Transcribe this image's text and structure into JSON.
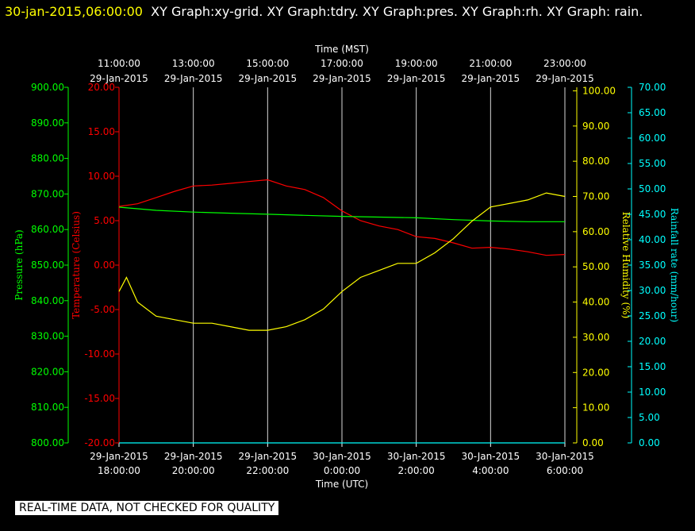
{
  "header": {
    "timestamp": "30-jan-2015,06:00:00",
    "title": "XY Graph:xy-grid.  XY Graph:tdry.  XY Graph:pres.  XY Graph:rh.  XY Graph: rain."
  },
  "footer": {
    "notice": "REAL-TIME DATA, NOT CHECKED FOR QUALITY"
  },
  "colors": {
    "background": "#000000",
    "grid": "#ffffff",
    "temperature": "#ff0000",
    "pressure": "#00ff00",
    "humidity": "#ffff00",
    "rain": "#00ffff"
  },
  "chart_data": {
    "type": "line",
    "x_top_title": "Time (MST)",
    "x_bottom_title": "Time (UTC)",
    "x_range_hours_utc": [
      0,
      12
    ],
    "x_ticks_top": [
      {
        "h": 0,
        "l1": "11:00:00",
        "l2": "29-Jan-2015"
      },
      {
        "h": 2,
        "l1": "13:00:00",
        "l2": "29-Jan-2015"
      },
      {
        "h": 4,
        "l1": "15:00:00",
        "l2": "29-Jan-2015"
      },
      {
        "h": 6,
        "l1": "17:00:00",
        "l2": "29-Jan-2015"
      },
      {
        "h": 8,
        "l1": "19:00:00",
        "l2": "29-Jan-2015"
      },
      {
        "h": 10,
        "l1": "21:00:00",
        "l2": "29-Jan-2015"
      },
      {
        "h": 12,
        "l1": "23:00:00",
        "l2": "29-Jan-2015"
      }
    ],
    "x_ticks_bottom": [
      {
        "h": 0,
        "l1": "29-Jan-2015",
        "l2": "18:00:00"
      },
      {
        "h": 2,
        "l1": "29-Jan-2015",
        "l2": "20:00:00"
      },
      {
        "h": 4,
        "l1": "29-Jan-2015",
        "l2": "22:00:00"
      },
      {
        "h": 6,
        "l1": "30-Jan-2015",
        "l2": "0:00:00"
      },
      {
        "h": 8,
        "l1": "30-Jan-2015",
        "l2": "2:00:00"
      },
      {
        "h": 10,
        "l1": "30-Jan-2015",
        "l2": "4:00:00"
      },
      {
        "h": 12,
        "l1": "30-Jan-2015",
        "l2": "6:00:00"
      }
    ],
    "axes": {
      "pressure": {
        "label": "Pressure (hPa)",
        "range": [
          800,
          900
        ],
        "ticks": [
          "800.00",
          "810.00",
          "820.00",
          "830.00",
          "840.00",
          "850.00",
          "860.00",
          "870.00",
          "880.00",
          "890.00",
          "900.00"
        ]
      },
      "temperature": {
        "label": "Temperature (Celsius)",
        "range": [
          -20,
          20
        ],
        "ticks": [
          "-20.00",
          "-15.00",
          "-10.00",
          "-5.00",
          "0.00",
          "5.00",
          "10.00",
          "15.00",
          "20.00"
        ]
      },
      "humidity": {
        "label": "Relative Humidity (%)",
        "range": [
          0,
          101
        ],
        "ticks": [
          "0.00",
          "10.00",
          "20.00",
          "30.00",
          "40.00",
          "50.00",
          "60.00",
          "70.00",
          "80.00",
          "90.00",
          "100.00"
        ]
      },
      "rain": {
        "label": "Rainfall rate (mm/hour)",
        "range": [
          0,
          70
        ],
        "ticks": [
          "0.00",
          "5.00",
          "10.00",
          "15.00",
          "20.00",
          "25.00",
          "30.00",
          "35.00",
          "40.00",
          "45.00",
          "50.00",
          "55.00",
          "60.00",
          "65.00",
          "70.00"
        ]
      }
    },
    "series": [
      {
        "key": "temperature",
        "x": [
          0,
          0.5,
          1,
          1.5,
          2,
          2.5,
          3,
          3.5,
          4,
          4.5,
          5,
          5.5,
          6,
          6.5,
          7,
          7.5,
          8,
          8.5,
          9,
          9.5,
          10,
          10.5,
          11,
          11.5,
          12
        ],
        "values": [
          6.6,
          6.9,
          7.6,
          8.3,
          8.9,
          9.0,
          9.2,
          9.4,
          9.6,
          8.9,
          8.5,
          7.6,
          6.1,
          5.0,
          4.4,
          4.0,
          3.2,
          3.0,
          2.5,
          1.9,
          2.0,
          1.8,
          1.5,
          1.1,
          1.2
        ]
      },
      {
        "key": "pressure",
        "x": [
          0,
          1,
          2,
          3,
          4,
          5,
          6,
          7,
          8,
          9,
          10,
          11,
          12
        ],
        "values": [
          866.3,
          865.4,
          864.9,
          864.6,
          864.3,
          864.0,
          863.7,
          863.5,
          863.3,
          862.8,
          862.4,
          862.2,
          862.2
        ]
      },
      {
        "key": "humidity",
        "x": [
          0,
          0.2,
          0.5,
          1,
          1.5,
          2,
          2.5,
          3,
          3.5,
          4,
          4.5,
          5,
          5.5,
          6,
          6.5,
          7,
          7.5,
          8,
          8.5,
          9,
          9.5,
          10,
          10.5,
          11,
          11.5,
          12
        ],
        "values": [
          43,
          47,
          40,
          36,
          35,
          34,
          34,
          33,
          32,
          32,
          33,
          35,
          38,
          43,
          47,
          49,
          51,
          51,
          54,
          58,
          63,
          67,
          68,
          69,
          71,
          70
        ]
      },
      {
        "key": "rain",
        "x": [
          0,
          12
        ],
        "values": [
          0,
          0
        ]
      }
    ]
  }
}
